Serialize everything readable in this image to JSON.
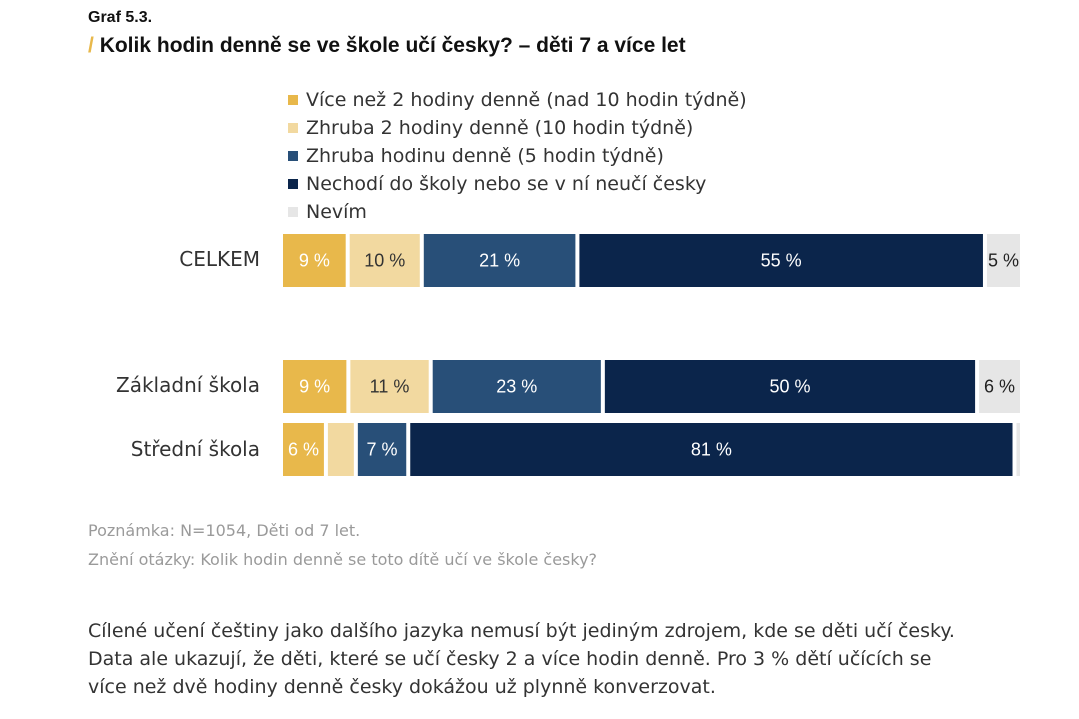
{
  "graph_label": "Graf 5.3.",
  "title_slash": "/",
  "title": "Kolik hodin denně se ve škole učí česky? – děti 7 a více let",
  "legend": [
    {
      "label": "Více než 2 hodiny denně (nad 10 hodin týdně)",
      "color": "#e8b84b"
    },
    {
      "label": "Zhruba 2 hodiny denně (10 hodin týdně)",
      "color": "#f2d9a0"
    },
    {
      "label": "Zhruba hodinu denně (5 hodin týdně)",
      "color": "#284f78"
    },
    {
      "label": "Nechodí do školy nebo se v ní neučí česky",
      "color": "#0b254b"
    },
    {
      "label": "Nevím",
      "color": "#e6e6e6"
    }
  ],
  "chart_data": {
    "type": "bar",
    "orientation": "horizontal",
    "stacked": true,
    "unit": "%",
    "categories": [
      "CELKEM",
      "Základní škola",
      "Střední škola"
    ],
    "series": [
      {
        "name": "Více než 2 hodiny denně (nad 10 hodin týdně)",
        "values": [
          9,
          9,
          6
        ],
        "labels": [
          "9 %",
          "9 %",
          "6 %"
        ]
      },
      {
        "name": "Zhruba 2 hodiny denně (10 hodin týdně)",
        "values": [
          10,
          11,
          4
        ],
        "labels": [
          "10 %",
          "11 %",
          ""
        ]
      },
      {
        "name": "Zhruba hodinu denně (5 hodin týdně)",
        "values": [
          21,
          23,
          7
        ],
        "labels": [
          "21 %",
          "23 %",
          "7 %"
        ]
      },
      {
        "name": "Nechodí do školy nebo se v ní neučí česky",
        "values": [
          55,
          50,
          81
        ],
        "labels": [
          "55 %",
          "50 %",
          "81 %"
        ]
      },
      {
        "name": "Nevím",
        "values": [
          5,
          6,
          1
        ],
        "labels": [
          "5 %",
          "6 %",
          ""
        ]
      }
    ],
    "label_colors": [
      "#ffffff",
      "#333333",
      "#ffffff",
      "#ffffff",
      "#222222"
    ],
    "legend_position": "top",
    "grid": false
  },
  "note": "Poznámka: N=1054, Děti od 7 let.",
  "question": "Znění otázky: Kolik hodin denně se toto dítě učí ve škole česky?",
  "body_lines": [
    "Cílené učení češtiny jako dalšího jazyka nemusí být jediným zdrojem, kde se děti učí česky.",
    "Data  ale ukazují, že děti, které se učí česky 2 a více hodin denně. Pro 3 % dětí učících se",
    "více než dvě hodiny denně česky dokážou už plynně konverzovat."
  ]
}
